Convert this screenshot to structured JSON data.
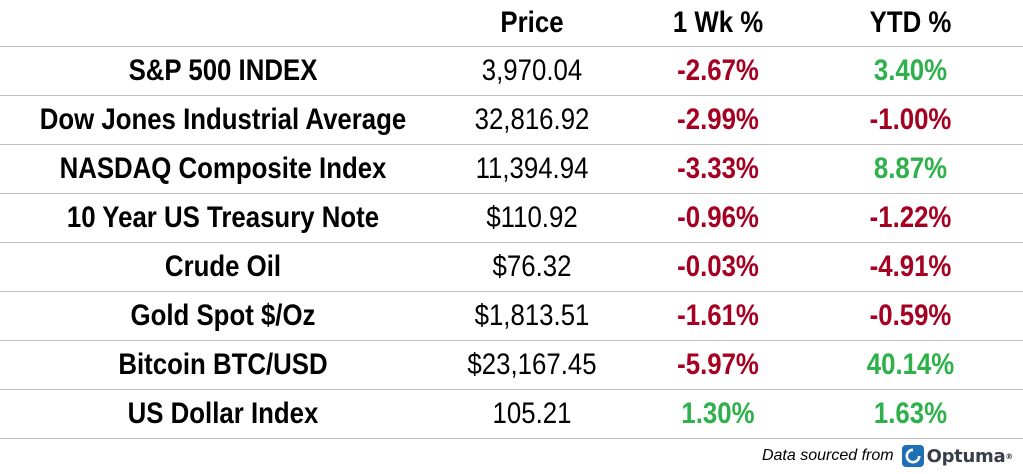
{
  "table": {
    "headers": {
      "name": "",
      "price": "Price",
      "week": "1 Wk %",
      "ytd": "YTD %"
    },
    "rows": [
      {
        "name": "S&P 500 INDEX",
        "price": "3,970.04",
        "week": "-2.67%",
        "ytd": "3.40%"
      },
      {
        "name": "Dow Jones Industrial Average",
        "price": "32,816.92",
        "week": "-2.99%",
        "ytd": "-1.00%"
      },
      {
        "name": "NASDAQ Composite Index",
        "price": "11,394.94",
        "week": "-3.33%",
        "ytd": "8.87%"
      },
      {
        "name": "10 Year US Treasury Note",
        "price": "$110.92",
        "week": "-0.96%",
        "ytd": "-1.22%"
      },
      {
        "name": "Crude Oil",
        "price": "$76.32",
        "week": "-0.03%",
        "ytd": "-4.91%"
      },
      {
        "name": "Gold Spot $/Oz",
        "price": "$1,813.51",
        "week": "-1.61%",
        "ytd": "-0.59%"
      },
      {
        "name": "Bitcoin BTC/USD",
        "price": "$23,167.45",
        "week": "-5.97%",
        "ytd": "40.14%"
      },
      {
        "name": "US Dollar Index",
        "price": "105.21",
        "week": "1.30%",
        "ytd": "1.63%"
      }
    ]
  },
  "colors": {
    "negative": "#a50021",
    "positive": "#2eb04b",
    "rule": "#bfbfbf",
    "logo_blue": "#1f6fb5"
  },
  "footer": {
    "source_text": "Data sourced from",
    "logo_text": "Optuma",
    "logo_tm": "®",
    "logo_icon": "optuma-logo-icon"
  }
}
